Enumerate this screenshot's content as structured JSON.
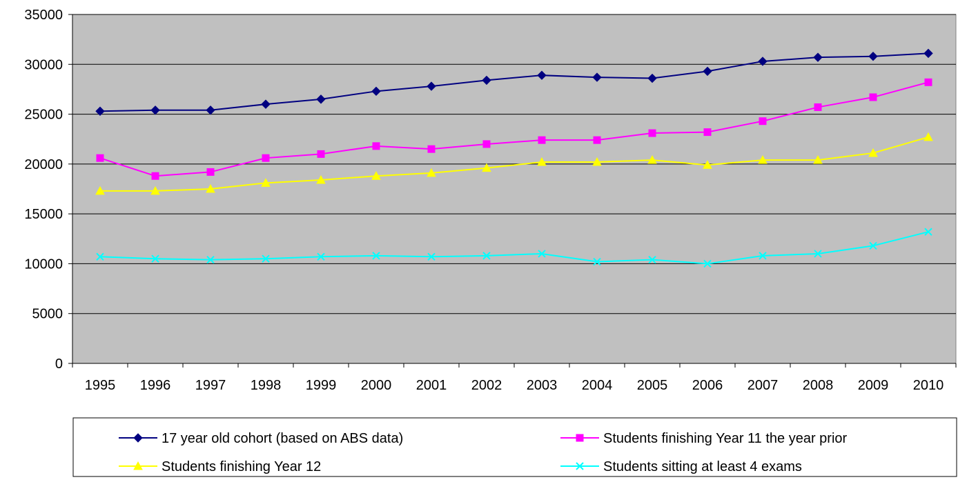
{
  "chart_data": {
    "type": "line",
    "title": "",
    "xlabel": "",
    "ylabel": "",
    "categories": [
      "1995",
      "1996",
      "1997",
      "1998",
      "1999",
      "2000",
      "2001",
      "2002",
      "2003",
      "2004",
      "2005",
      "2006",
      "2007",
      "2008",
      "2009",
      "2010"
    ],
    "ylim": [
      0,
      35000
    ],
    "yticks": [
      0,
      5000,
      10000,
      15000,
      20000,
      25000,
      30000,
      35000
    ],
    "ytick_labels": [
      "0",
      "5000",
      "10000",
      "15000",
      "20000",
      "25000",
      "30000",
      "35000"
    ],
    "grid": true,
    "plot_background": "#c0c0c0",
    "legend_position": "bottom",
    "series": [
      {
        "name": "17 year old cohort (based on ABS data)",
        "color": "#000080",
        "marker": "diamond",
        "values": [
          25300,
          25400,
          25400,
          26000,
          26500,
          27300,
          27800,
          28400,
          28900,
          28700,
          28600,
          29300,
          30300,
          30700,
          30800,
          31100
        ]
      },
      {
        "name": "Students finishing Year 11 the year prior",
        "color": "#ff00ff",
        "marker": "square",
        "values": [
          20600,
          18800,
          19200,
          20600,
          21000,
          21800,
          21500,
          22000,
          22400,
          22400,
          23100,
          23200,
          24300,
          25700,
          26700,
          28200
        ]
      },
      {
        "name": "Students finishing Year 12",
        "color": "#ffff00",
        "marker": "triangle",
        "values": [
          17300,
          17300,
          17500,
          18100,
          18400,
          18800,
          19100,
          19600,
          20200,
          20200,
          20400,
          19900,
          20400,
          20400,
          21100,
          22700
        ]
      },
      {
        "name": "Students sitting at least 4 exams",
        "color": "#00ffff",
        "marker": "x",
        "values": [
          10700,
          10500,
          10400,
          10500,
          10700,
          10800,
          10700,
          10800,
          11000,
          10200,
          10400,
          10000,
          10800,
          11000,
          11800,
          13200
        ]
      }
    ]
  }
}
